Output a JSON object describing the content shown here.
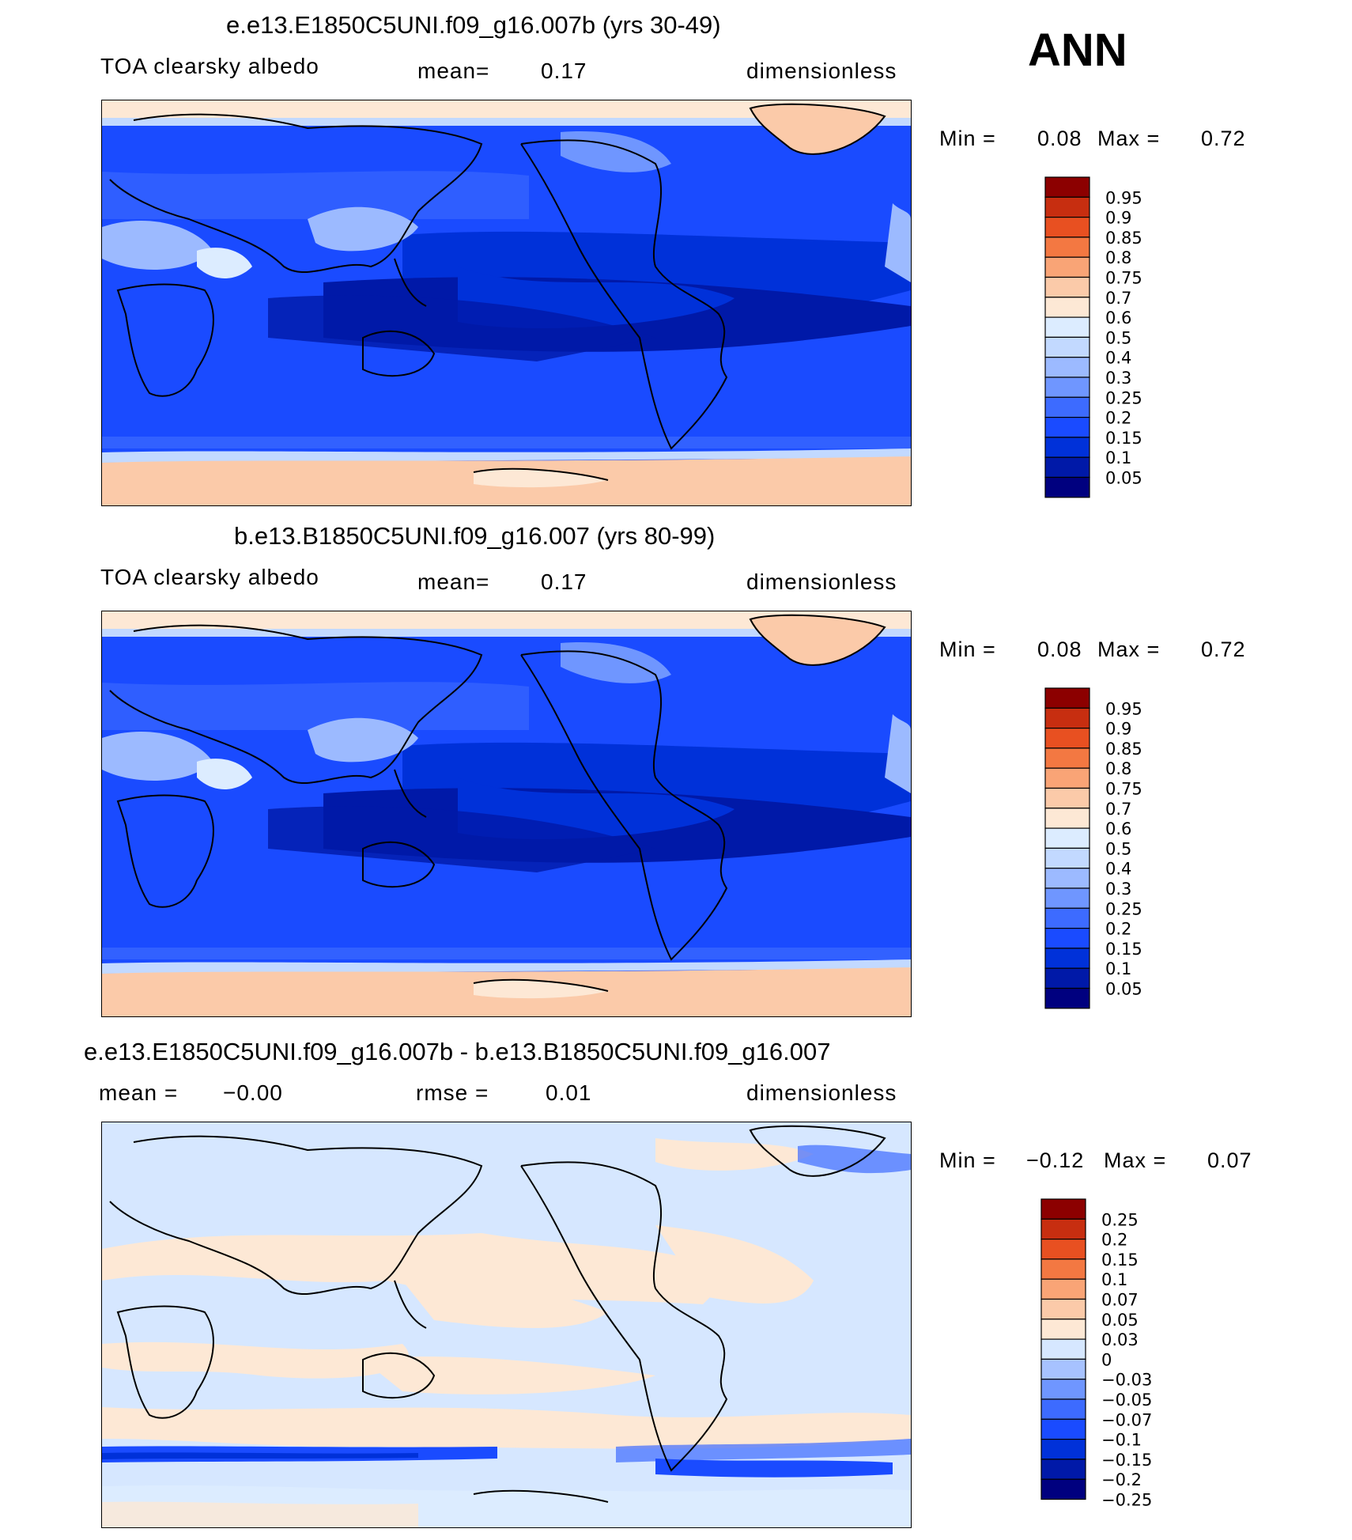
{
  "season": "ANN",
  "colors": {
    "scale_abs": [
      "#00007f",
      "#0019a8",
      "#0031d9",
      "#1a4bff",
      "#3d6bff",
      "#6f96ff",
      "#9cbaff",
      "#c2d9ff",
      "#dcecff",
      "#fde8d5",
      "#fbcaa9",
      "#f9a476",
      "#f37842",
      "#e85021",
      "#c72e10",
      "#8c0000"
    ],
    "scale_diff": [
      "#00007f",
      "#0019a8",
      "#0031d9",
      "#1a4bff",
      "#3d6bff",
      "#6f96ff",
      "#a7c2ff",
      "#d6e7ff",
      "#fde8d5",
      "#fbcaa9",
      "#f9a476",
      "#f37842",
      "#e85021",
      "#c72e10",
      "#8c0000"
    ]
  },
  "panels": [
    {
      "title": "e.e13.E1850C5UNI.f09_g16.007b (yrs 30-49)",
      "left": "TOA clearsky albedo",
      "mid_label": "mean=",
      "mid_value": "0.17",
      "right": "dimensionless",
      "min_label": "Min =",
      "min_value": "0.08",
      "max_label": "Max =",
      "max_value": "0.72",
      "legend_labels": [
        "0.95",
        "0.9",
        "0.85",
        "0.8",
        "0.75",
        "0.7",
        "0.6",
        "0.5",
        "0.4",
        "0.3",
        "0.25",
        "0.2",
        "0.15",
        "0.1",
        "0.05"
      ]
    },
    {
      "title": "b.e13.B1850C5UNI.f09_g16.007 (yrs 80-99)",
      "left": "TOA clearsky albedo",
      "mid_label": "mean=",
      "mid_value": "0.17",
      "right": "dimensionless",
      "min_label": "Min =",
      "min_value": "0.08",
      "max_label": "Max =",
      "max_value": "0.72",
      "legend_labels": [
        "0.95",
        "0.9",
        "0.85",
        "0.8",
        "0.75",
        "0.7",
        "0.6",
        "0.5",
        "0.4",
        "0.3",
        "0.25",
        "0.2",
        "0.15",
        "0.1",
        "0.05"
      ]
    },
    {
      "title": "e.e13.E1850C5UNI.f09_g16.007b - b.e13.B1850C5UNI.f09_g16.007",
      "left_label": "mean =",
      "left_value": "−0.00",
      "mid_label": "rmse =",
      "mid_value": "0.01",
      "right": "dimensionless",
      "min_label": "Min =",
      "min_value": "−0.12",
      "max_label": "Max =",
      "max_value": "0.07",
      "legend_labels": [
        "0.25",
        "0.2",
        "0.15",
        "0.1",
        "0.07",
        "0.05",
        "0.03",
        "0",
        "−0.03",
        "−0.05",
        "−0.07",
        "−0.1",
        "−0.15",
        "−0.2",
        "−0.25"
      ]
    }
  ]
}
